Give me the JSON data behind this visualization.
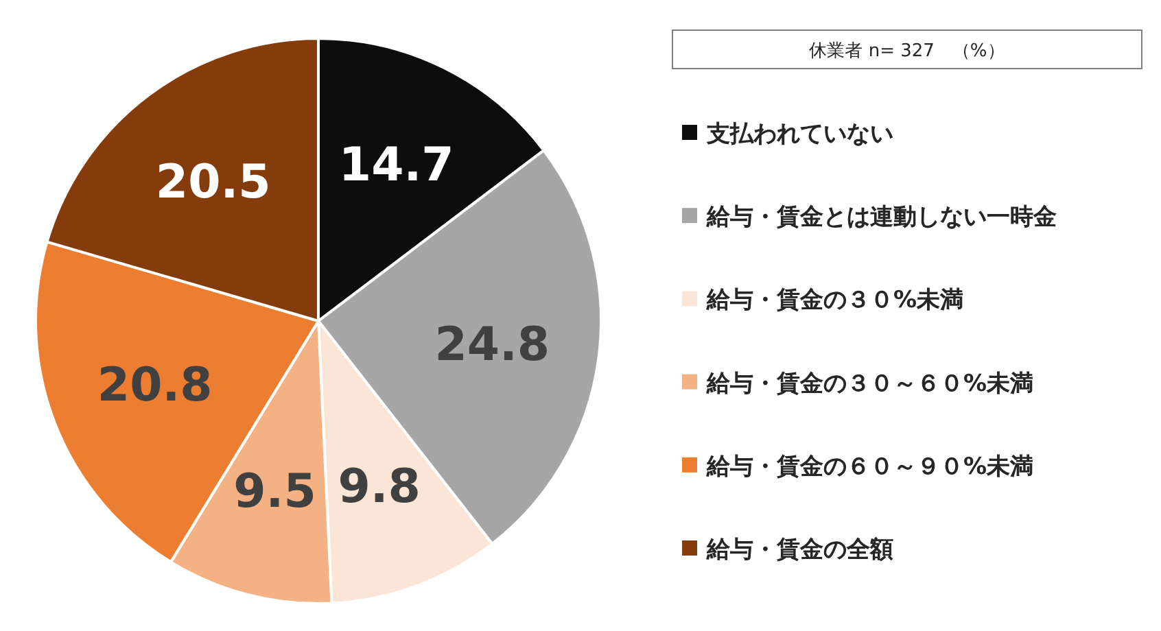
{
  "chart_data": {
    "type": "pie",
    "legend_title": "休業者 n= 327　（%）",
    "categories": [
      "支払われていない",
      "給与・賃金とは連動しない一時金",
      "給与・賃金の３０%未満",
      "給与・賃金の３０～６０%未満",
      "給与・賃金の６０～９０%未満",
      "給与・賃金の全額"
    ],
    "values": [
      14.7,
      24.8,
      9.8,
      9.5,
      20.8,
      20.5
    ],
    "colors": [
      "#0d0d0d",
      "#a6a6a6",
      "#fbe5d6",
      "#f4b183",
      "#ed7d31",
      "#843c0c"
    ],
    "data_labels": true,
    "legend": "right"
  }
}
